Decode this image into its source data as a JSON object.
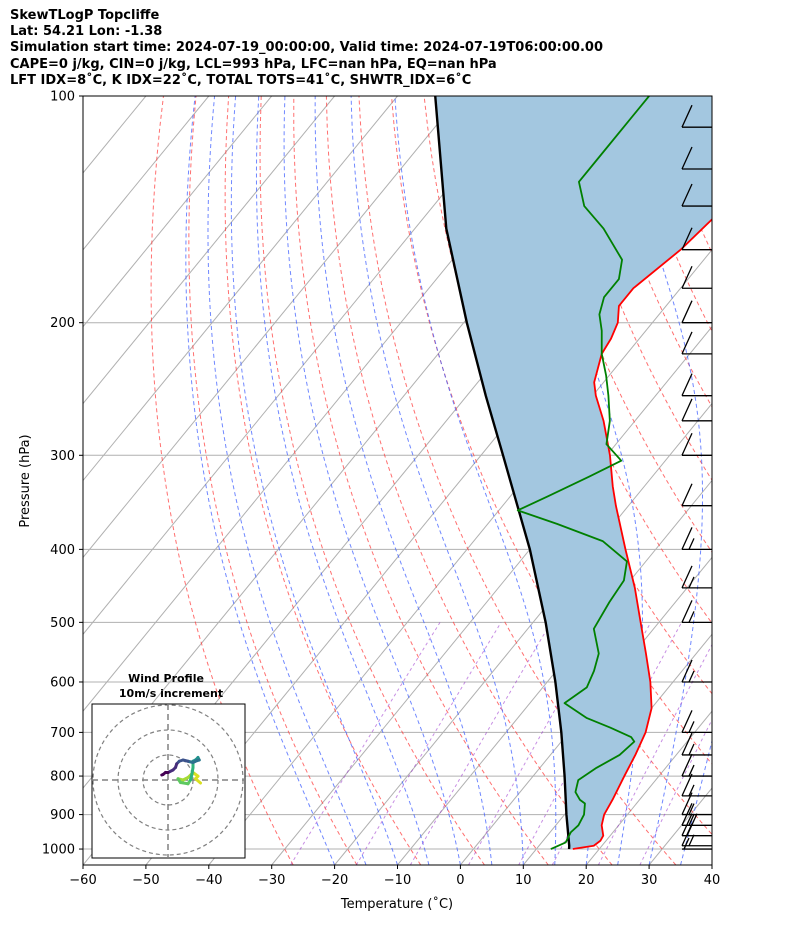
{
  "header": {
    "title": "SkewTLogP Topcliffe",
    "location": "Lat: 54.21   Lon: -1.38",
    "times": "Simulation start time: 2024-07-19_00:00:00, Valid time: 2024-07-19T06:00:00.00",
    "params": "CAPE=0 j/kg, CIN=0 j/kg, LCL=993 hPa, LFC=nan hPa, EQ=nan hPa",
    "indices": "LFT IDX=8˚C, K IDX=22˚C, TOTAL TOTS=41˚C, SHWTR_IDX=6˚C"
  },
  "chart_data": {
    "type": "line",
    "subtype": "skew-t log-p diagram",
    "xlabel": "Temperature (˚C)",
    "ylabel": "Pressure (hPa)",
    "xlim": [
      -60,
      40
    ],
    "ylim": [
      1050,
      100
    ],
    "y_scale": "log",
    "x_ticks": [
      "−60",
      "−50",
      "−40",
      "−30",
      "−20",
      "−10",
      "0",
      "10",
      "20",
      "30",
      "40"
    ],
    "y_ticks": [
      "100",
      "200",
      "300",
      "400",
      "500",
      "600",
      "700",
      "800",
      "900",
      "1000"
    ],
    "grid": true,
    "series": [
      {
        "kind": "temperature",
        "color": "#ff0000",
        "points": [
          [
            1000,
            15.8
          ],
          [
            990,
            18.7
          ],
          [
            975,
            19.1
          ],
          [
            960,
            18.9
          ],
          [
            930,
            17.3
          ],
          [
            900,
            16.3
          ],
          [
            860,
            15.7
          ],
          [
            800,
            14.5
          ],
          [
            750,
            13.5
          ],
          [
            700,
            12.2
          ],
          [
            650,
            10.0
          ],
          [
            600,
            6.4
          ],
          [
            550,
            2.0
          ],
          [
            500,
            -2.9
          ],
          [
            450,
            -8.3
          ],
          [
            400,
            -14.8
          ],
          [
            350,
            -22.0
          ],
          [
            330,
            -25.0
          ],
          [
            300,
            -29.5
          ],
          [
            270,
            -35.0
          ],
          [
            250,
            -39.5
          ],
          [
            240,
            -41.5
          ],
          [
            220,
            -44.0
          ],
          [
            210,
            -44.5
          ],
          [
            200,
            -45.5
          ],
          [
            190,
            -47.5
          ],
          [
            180,
            -47.5
          ],
          [
            160,
            -45.0
          ],
          [
            140,
            -43.5
          ],
          [
            130,
            -44.0
          ],
          [
            120,
            -44.0
          ],
          [
            110,
            -43.0
          ],
          [
            100,
            -42.0
          ]
        ]
      },
      {
        "kind": "dewpoint",
        "color": "#008000",
        "points": [
          [
            1000,
            12.3
          ],
          [
            980,
            13.8
          ],
          [
            950,
            13.3
          ],
          [
            930,
            13.6
          ],
          [
            900,
            13.1
          ],
          [
            870,
            11.8
          ],
          [
            860,
            10.5
          ],
          [
            840,
            8.8
          ],
          [
            810,
            7.7
          ],
          [
            780,
            9.0
          ],
          [
            750,
            11.0
          ],
          [
            720,
            11.6
          ],
          [
            710,
            10.5
          ],
          [
            690,
            6.0
          ],
          [
            670,
            1.0
          ],
          [
            640,
            -4.5
          ],
          [
            610,
            -3.0
          ],
          [
            580,
            -4.0
          ],
          [
            550,
            -5.5
          ],
          [
            510,
            -9.5
          ],
          [
            470,
            -10.5
          ],
          [
            440,
            -11.0
          ],
          [
            415,
            -13.0
          ],
          [
            390,
            -19.5
          ],
          [
            370,
            -29.0
          ],
          [
            355,
            -37.0
          ],
          [
            340,
            -34.0
          ],
          [
            320,
            -30.0
          ],
          [
            305,
            -27.0
          ],
          [
            290,
            -31.5
          ],
          [
            270,
            -34.0
          ],
          [
            250,
            -37.5
          ],
          [
            235,
            -40.5
          ],
          [
            220,
            -44.0
          ],
          [
            205,
            -47.0
          ],
          [
            195,
            -49.5
          ],
          [
            185,
            -51.0
          ],
          [
            175,
            -51.0
          ],
          [
            165,
            -53.0
          ],
          [
            150,
            -60.0
          ],
          [
            140,
            -66.0
          ],
          [
            130,
            -70.0
          ],
          [
            120,
            -70.0
          ],
          [
            110,
            -70.0
          ],
          [
            100,
            -70.0
          ]
        ]
      },
      {
        "kind": "parcel",
        "color": "#000000",
        "points": [
          [
            1000,
            15.2
          ],
          [
            990,
            14.8
          ],
          [
            900,
            10.3
          ],
          [
            800,
            5.0
          ],
          [
            700,
            -1.2
          ],
          [
            600,
            -8.7
          ],
          [
            500,
            -18.0
          ],
          [
            400,
            -30.0
          ],
          [
            300,
            -46.5
          ],
          [
            250,
            -57.0
          ],
          [
            200,
            -69.5
          ],
          [
            150,
            -85.0
          ],
          [
            100,
            -104.0
          ]
        ]
      }
    ],
    "wind_barbs": [
      {
        "p": 1000,
        "speed_kt": 5
      },
      {
        "p": 990,
        "speed_kt": 15
      },
      {
        "p": 960,
        "speed_kt": 20
      },
      {
        "p": 930,
        "speed_kt": 15
      },
      {
        "p": 900,
        "speed_kt": 15
      },
      {
        "p": 850,
        "speed_kt": 15
      },
      {
        "p": 800,
        "speed_kt": 15
      },
      {
        "p": 750,
        "speed_kt": 15
      },
      {
        "p": 700,
        "speed_kt": 15
      },
      {
        "p": 600,
        "speed_kt": 15
      },
      {
        "p": 500,
        "speed_kt": 15
      },
      {
        "p": 450,
        "speed_kt": 15
      },
      {
        "p": 400,
        "speed_kt": 15
      },
      {
        "p": 350,
        "speed_kt": 10
      },
      {
        "p": 300,
        "speed_kt": 10
      },
      {
        "p": 270,
        "speed_kt": 10
      },
      {
        "p": 250,
        "speed_kt": 10
      },
      {
        "p": 220,
        "speed_kt": 10
      },
      {
        "p": 200,
        "speed_kt": 10
      },
      {
        "p": 180,
        "speed_kt": 10
      },
      {
        "p": 160,
        "speed_kt": 10
      },
      {
        "p": 140,
        "speed_kt": 10
      },
      {
        "p": 125,
        "speed_kt": 10
      },
      {
        "p": 110,
        "speed_kt": 10
      }
    ],
    "hodograph": {
      "title": "Wind Profile",
      "subtitle": "10m/s increment",
      "rings_ms": [
        10,
        20,
        30
      ],
      "uv_ms": [
        [
          13,
          -1.2
        ],
        [
          11,
          0.5
        ],
        [
          12,
          1.5
        ],
        [
          10,
          3
        ],
        [
          8,
          1
        ],
        [
          6,
          0
        ],
        [
          4,
          0.5
        ],
        [
          5,
          -1
        ],
        [
          8,
          -1.5
        ],
        [
          9,
          0
        ],
        [
          9.5,
          2
        ],
        [
          10,
          5
        ],
        [
          10,
          7.5
        ],
        [
          11,
          8
        ],
        [
          12,
          9
        ],
        [
          12.5,
          8
        ],
        [
          11,
          7.5
        ],
        [
          10,
          7
        ],
        [
          8,
          7.5
        ],
        [
          6,
          8
        ],
        [
          4.5,
          7.5
        ],
        [
          3.5,
          6.5
        ],
        [
          3,
          5
        ],
        [
          2,
          4
        ],
        [
          0,
          3
        ],
        [
          -1,
          3
        ],
        [
          -2,
          2.2
        ],
        [
          -2.5,
          2
        ]
      ]
    },
    "fill_between_T_and_parcel": "#a3c7e0"
  }
}
